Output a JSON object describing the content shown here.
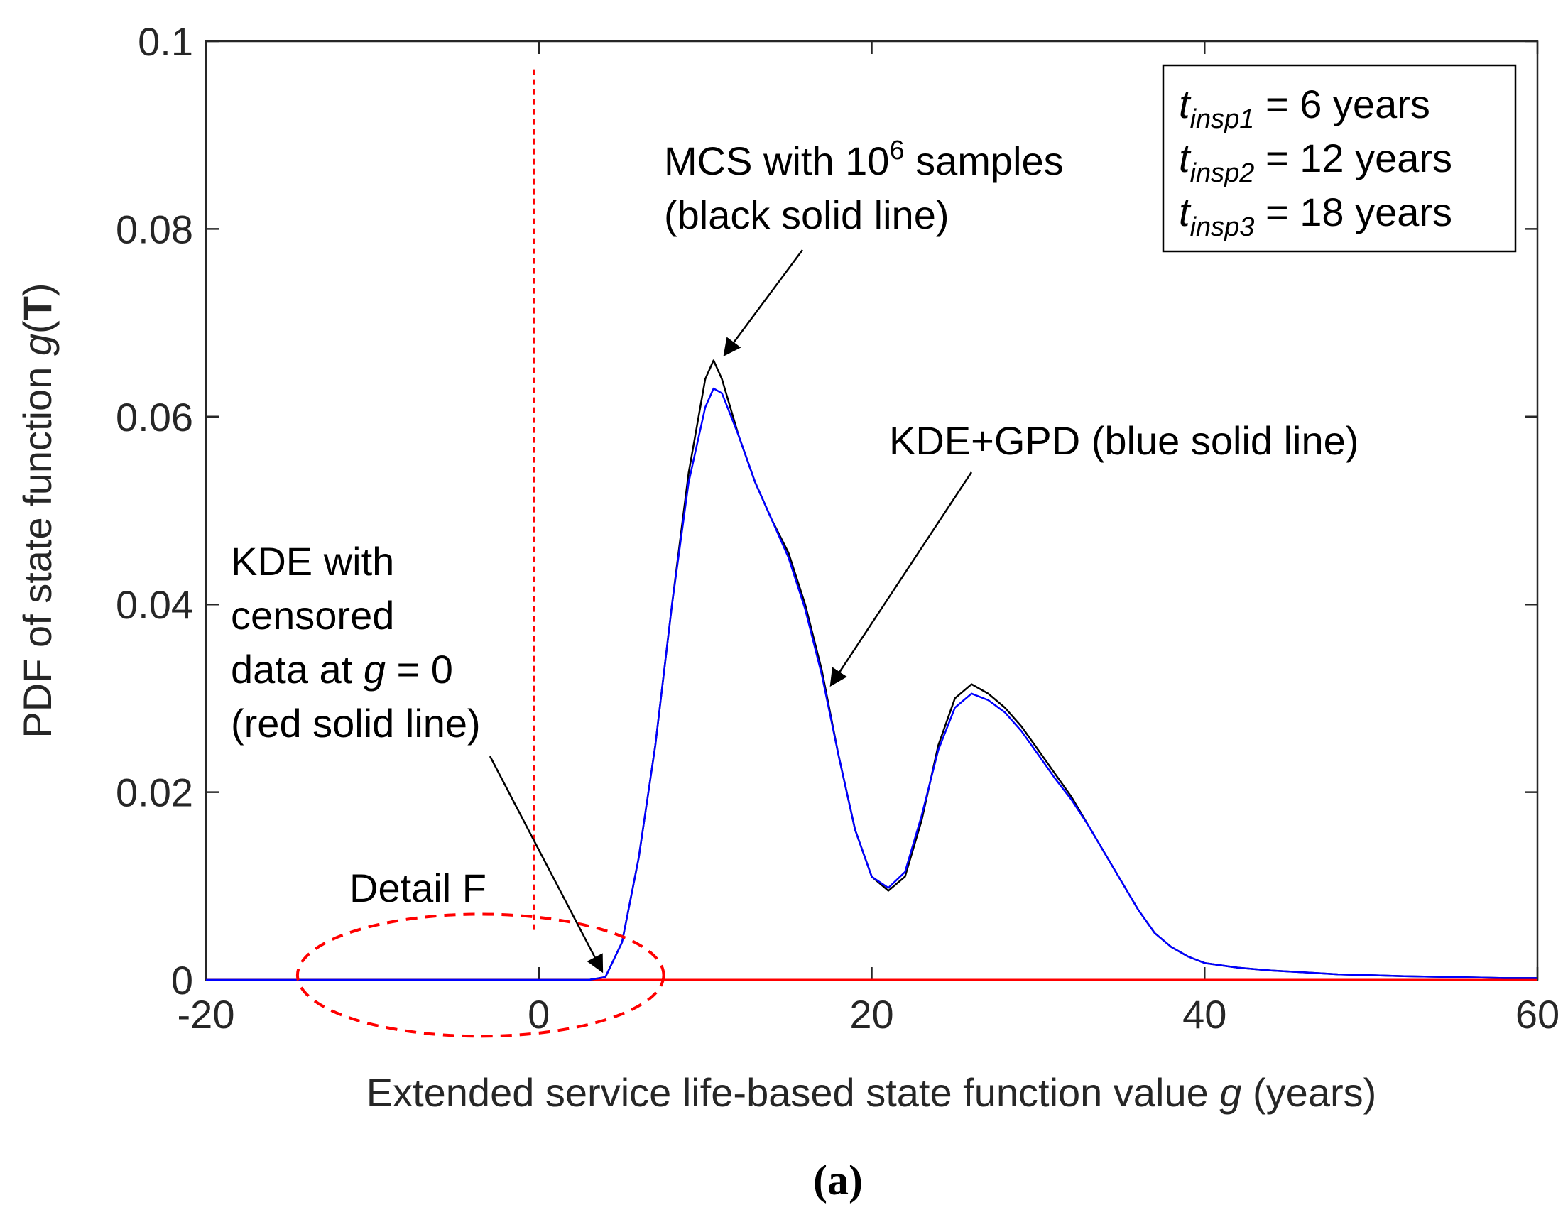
{
  "chart_data": {
    "type": "line",
    "title": "",
    "xlabel": "Extended service life-based state function value g (years)",
    "ylabel": "PDF of state function g(T)",
    "xlim": [
      -20,
      60
    ],
    "ylim": [
      0,
      0.1
    ],
    "x_ticks": [
      -20,
      0,
      20,
      40,
      60
    ],
    "y_ticks": [
      0,
      0.02,
      0.04,
      0.06,
      0.08,
      0.1
    ],
    "x_tick_labels": [
      "-20",
      "0",
      "20",
      "40",
      "60"
    ],
    "y_tick_labels": [
      "0",
      "0.02",
      "0.04",
      "0.06",
      "0.08",
      "0.1"
    ],
    "grid": false,
    "series": [
      {
        "name": "MCS with 10^6 samples",
        "color": "#000000",
        "x": [
          -20,
          3,
          4,
          5,
          6,
          7,
          8,
          9,
          10,
          10.5,
          11,
          12,
          13,
          14,
          15,
          16,
          17,
          18,
          19,
          20,
          21,
          22,
          23,
          24,
          25,
          26,
          27,
          28,
          29,
          30,
          31,
          32,
          33,
          34,
          35,
          36,
          37,
          38,
          39,
          40,
          42,
          44,
          46,
          48,
          50,
          52,
          55,
          58,
          60
        ],
        "y": [
          0,
          0,
          0.0003,
          0.004,
          0.013,
          0.025,
          0.04,
          0.054,
          0.064,
          0.066,
          0.064,
          0.058,
          0.053,
          0.049,
          0.0455,
          0.04,
          0.033,
          0.024,
          0.016,
          0.011,
          0.0095,
          0.011,
          0.017,
          0.025,
          0.03,
          0.0315,
          0.0305,
          0.029,
          0.027,
          0.0245,
          0.022,
          0.0195,
          0.0165,
          0.0135,
          0.0105,
          0.0075,
          0.005,
          0.0035,
          0.0025,
          0.0018,
          0.0013,
          0.001,
          0.0008,
          0.0006,
          0.0005,
          0.0004,
          0.0003,
          0.0002,
          0.0002
        ]
      },
      {
        "name": "KDE+GPD",
        "color": "#0000ff",
        "x": [
          -20,
          3,
          4,
          5,
          6,
          7,
          8,
          9,
          10,
          10.5,
          11,
          12,
          13,
          14,
          15,
          16,
          17,
          18,
          19,
          20,
          21,
          22,
          23,
          24,
          25,
          26,
          27,
          28,
          29,
          30,
          31,
          32,
          33,
          34,
          35,
          36,
          37,
          38,
          39,
          40,
          42,
          44,
          46,
          48,
          50,
          52,
          55,
          58,
          60
        ],
        "y": [
          0,
          0,
          0.0003,
          0.004,
          0.013,
          0.025,
          0.04,
          0.053,
          0.061,
          0.063,
          0.0625,
          0.058,
          0.053,
          0.049,
          0.045,
          0.0395,
          0.0325,
          0.024,
          0.016,
          0.011,
          0.0098,
          0.0115,
          0.0175,
          0.0245,
          0.029,
          0.0305,
          0.0298,
          0.0285,
          0.0265,
          0.024,
          0.0215,
          0.0192,
          0.0165,
          0.0135,
          0.0105,
          0.0075,
          0.005,
          0.0035,
          0.0025,
          0.0018,
          0.0013,
          0.001,
          0.0008,
          0.0006,
          0.0005,
          0.0004,
          0.0003,
          0.0002,
          0.0002
        ]
      },
      {
        "name": "KDE with censored data at g = 0",
        "color": "#ff0000",
        "x": [
          -20,
          0,
          3,
          4,
          60
        ],
        "y": [
          0,
          0,
          0,
          0,
          0
        ]
      }
    ],
    "reference_lines": [
      {
        "type": "vertical",
        "x": -0.3,
        "style": "dashed",
        "color": "#ff0000"
      }
    ],
    "region_marker": {
      "shape": "ellipse",
      "center_x": -3.5,
      "center_y": 0.0005,
      "radius_x": 11,
      "radius_y": 0.0065,
      "style": "dashed",
      "color": "#ff0000"
    },
    "legend_box": {
      "placement": "top-right",
      "lines": [
        {
          "var": "t",
          "sub": "insp1",
          "rest": " = 6 years"
        },
        {
          "var": "t",
          "sub": "insp2",
          "rest": " = 12 years"
        },
        {
          "var": "t",
          "sub": "insp3",
          "rest": " = 18 years"
        }
      ]
    },
    "annotations": {
      "mcs": {
        "line1_pre": "MCS with 10",
        "line1_sup": "6",
        "line1_post": " samples",
        "line2": "(black solid line)",
        "arrow_to": {
          "x": 10.9,
          "y": 0.066
        }
      },
      "kdegpd": {
        "line1": "KDE+GPD (blue solid line)",
        "arrow_to": {
          "x": 17.4,
          "y": 0.032
        }
      },
      "kde": {
        "line1": "KDE with",
        "line2": "censored",
        "line3_pre": "data at ",
        "line3_var": "g",
        "line3_post": " = 0",
        "line4": "(red solid line)",
        "arrow_to": {
          "x": 4,
          "y": 0.0005
        }
      },
      "detail": {
        "label": "Detail F"
      }
    },
    "panel_label": "(a)",
    "axis_labels": {
      "x_pre": "Extended service life-based state function value ",
      "x_var": "g",
      "x_post": " (years)",
      "y_pre": "PDF of state function ",
      "y_var": "g",
      "y_paren_open": "(",
      "y_bold": "T",
      "y_paren_close": ")"
    }
  }
}
